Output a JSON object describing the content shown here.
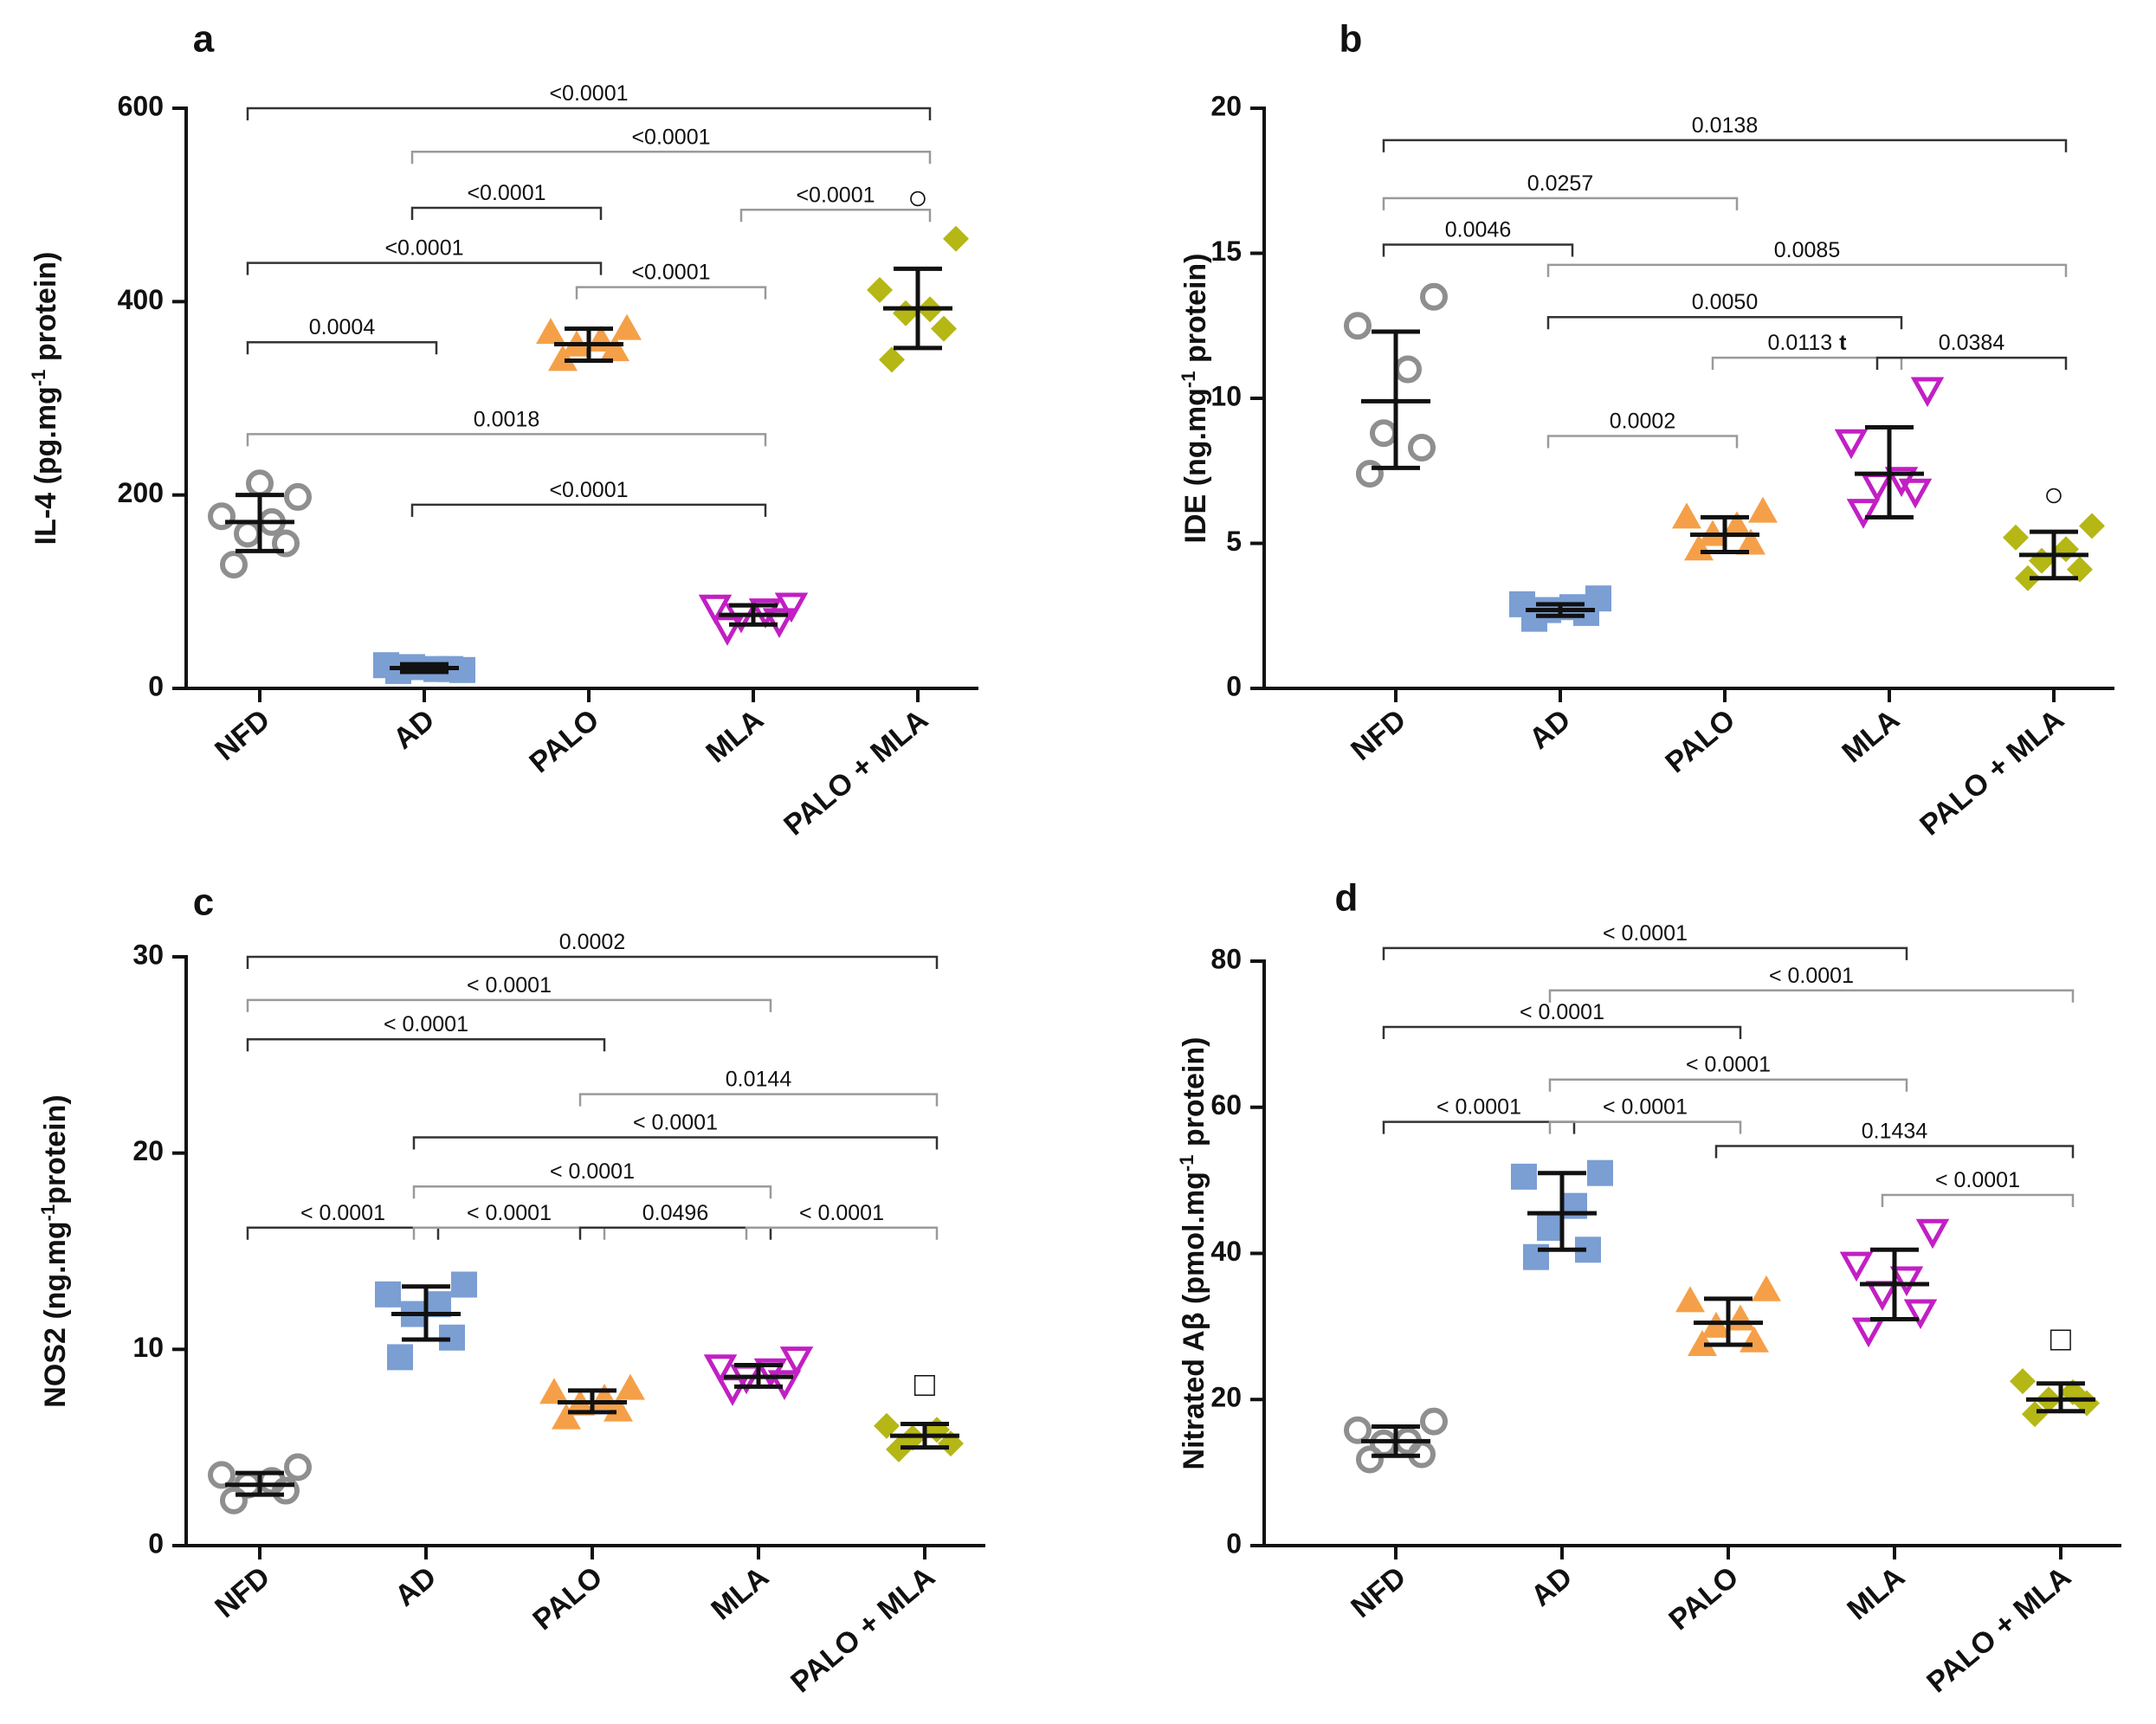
{
  "groups": [
    "NFD",
    "AD",
    "PALO",
    "MLA",
    "PALO + MLA"
  ],
  "colors": {
    "NFD": "#8f8f8f",
    "AD": "#7b9ed3",
    "PALO": "#f5a048",
    "MLA": "#c21fc4",
    "PALO + MLA": "#b5b715",
    "errorbar": "#111111",
    "bracket_dark": "#333333",
    "bracket_light": "#9a9a9a"
  },
  "chart_data": [
    {
      "id": "a",
      "type": "scatter",
      "letter": "a",
      "ylabel": "IL-4 (pg.mg-1 protein)",
      "ylabel_parts": [
        "IL-4 (pg.mg",
        "-1",
        " protein)"
      ],
      "ylim": [
        0,
        600
      ],
      "yticks": [
        0,
        200,
        400,
        600
      ],
      "yticklabels": [
        "0",
        "200",
        "400",
        "600"
      ],
      "categories": [
        "NFD",
        "AD",
        "PALO",
        "MLA",
        "PALO + MLA"
      ],
      "markers": [
        "circle-open",
        "square",
        "triangle-up",
        "triangle-down-open",
        "diamond"
      ],
      "series": [
        {
          "name": "NFD",
          "points": [
            128,
            150,
            160,
            172,
            178,
            198,
            212
          ],
          "mean": 172,
          "error": [
            142,
            200
          ]
        },
        {
          "name": "AD",
          "points": [
            18,
            20,
            22,
            20,
            24,
            19
          ],
          "mean": 21,
          "error": [
            17,
            25
          ]
        },
        {
          "name": "PALO",
          "points": [
            340,
            350,
            355,
            360,
            368,
            372
          ],
          "mean": 356,
          "error": [
            339,
            372
          ]
        },
        {
          "name": "MLA",
          "points": [
            62,
            70,
            75,
            80,
            84,
            86
          ],
          "mean": 76,
          "error": [
            66,
            86
          ]
        },
        {
          "name": "PALO + MLA",
          "points": [
            340,
            372,
            388,
            392,
            412,
            465
          ],
          "mean": 393,
          "error": [
            352,
            434
          ]
        }
      ],
      "significance": [
        {
          "from": 0,
          "to": 4,
          "label": "<0.0001",
          "level": 600
        },
        {
          "from": 1,
          "to": 4,
          "label": "<0.0001",
          "level": 555
        },
        {
          "from": 1,
          "to": 2,
          "label": "<0.0001",
          "level": 497
        },
        {
          "from": 3,
          "to": 4,
          "label": "<0.0001",
          "level": 495
        },
        {
          "from": 0,
          "to": 2,
          "label": "<0.0001",
          "level": 440
        },
        {
          "from": 2,
          "to": 3,
          "label": "<0.0001",
          "level": 415
        },
        {
          "from": 0,
          "to": 1,
          "label": "0.0004",
          "level": 358
        },
        {
          "from": 0,
          "to": 3,
          "label": "0.0018",
          "level": 263
        },
        {
          "from": 1,
          "to": 3,
          "label": "<0.0001",
          "level": 190
        }
      ],
      "annotation": {
        "symbol": "○",
        "group": 4,
        "value": 505
      }
    },
    {
      "id": "b",
      "type": "scatter",
      "letter": "b",
      "ylabel": "IDE (ng.mg-1 protein)",
      "ylabel_parts": [
        "IDE (ng.mg",
        "-1",
        " protein)"
      ],
      "ylim": [
        0,
        20
      ],
      "yticks": [
        0,
        5,
        10,
        15,
        20
      ],
      "yticklabels": [
        "0",
        "5",
        "10",
        "15",
        "20"
      ],
      "categories": [
        "NFD",
        "AD",
        "PALO",
        "MLA",
        "PALO + MLA"
      ],
      "markers": [
        "circle-open",
        "square",
        "triangle-up",
        "triangle-down-open",
        "diamond"
      ],
      "series": [
        {
          "name": "NFD",
          "points": [
            7.4,
            8.3,
            8.8,
            11.0,
            12.5,
            13.5
          ],
          "mean": 9.9,
          "error": [
            7.6,
            12.3
          ]
        },
        {
          "name": "AD",
          "points": [
            2.4,
            2.6,
            2.7,
            2.8,
            2.9,
            3.1
          ],
          "mean": 2.7,
          "error": [
            2.5,
            2.9
          ]
        },
        {
          "name": "PALO",
          "points": [
            4.8,
            5.0,
            5.3,
            5.6,
            5.9,
            6.1
          ],
          "mean": 5.3,
          "error": [
            4.7,
            5.9
          ]
        },
        {
          "name": "MLA",
          "points": [
            6.1,
            6.8,
            7.0,
            7.2,
            8.5,
            10.3
          ],
          "mean": 7.4,
          "error": [
            5.9,
            9.0
          ]
        },
        {
          "name": "PALO + MLA",
          "points": [
            3.8,
            4.1,
            4.4,
            4.8,
            5.2,
            5.6
          ],
          "mean": 4.6,
          "error": [
            3.8,
            5.4
          ]
        }
      ],
      "significance": [
        {
          "from": 0,
          "to": 4,
          "label": "0.0138",
          "level": 18.9
        },
        {
          "from": 0,
          "to": 2,
          "label": "0.0257",
          "level": 16.9
        },
        {
          "from": 0,
          "to": 1,
          "label": "0.0046",
          "level": 15.3
        },
        {
          "from": 1,
          "to": 4,
          "label": "0.0085",
          "level": 14.6
        },
        {
          "from": 1,
          "to": 3,
          "label": "0.0050",
          "level": 12.8
        },
        {
          "from": 2,
          "to": 3,
          "label": "0.0113",
          "label_suffix": "t",
          "level": 11.4
        },
        {
          "from": 3,
          "to": 4,
          "label": "0.0384",
          "level": 11.4
        },
        {
          "from": 1,
          "to": 2,
          "label": "0.0002",
          "level": 8.7
        }
      ],
      "annotation": {
        "symbol": "○",
        "group": 4,
        "value": 6.6
      }
    },
    {
      "id": "c",
      "type": "scatter",
      "letter": "c",
      "ylabel": "NOS2 (ng.mg-1protein)",
      "ylabel_parts": [
        "NOS2 (ng.mg",
        "-1",
        "protein)"
      ],
      "ylim": [
        0,
        30
      ],
      "yticks": [
        0,
        10,
        20,
        30
      ],
      "yticklabels": [
        "0",
        "10",
        "20",
        "30"
      ],
      "categories": [
        "NFD",
        "AD",
        "PALO",
        "MLA",
        "PALO + MLA"
      ],
      "markers": [
        "circle-open",
        "square",
        "triangle-up",
        "triangle-down-open",
        "diamond"
      ],
      "series": [
        {
          "name": "NFD",
          "points": [
            2.3,
            2.8,
            3.1,
            3.3,
            3.6,
            4.0
          ],
          "mean": 3.1,
          "error": [
            2.6,
            3.7
          ]
        },
        {
          "name": "AD",
          "points": [
            9.6,
            10.6,
            11.8,
            12.3,
            12.8,
            13.3
          ],
          "mean": 11.8,
          "error": [
            10.5,
            13.2
          ]
        },
        {
          "name": "PALO",
          "points": [
            6.5,
            6.9,
            7.2,
            7.5,
            7.8,
            8.0
          ],
          "mean": 7.3,
          "error": [
            6.8,
            7.9
          ]
        },
        {
          "name": "MLA",
          "points": [
            8.0,
            8.3,
            8.6,
            8.9,
            9.1,
            9.5
          ],
          "mean": 8.6,
          "error": [
            8.1,
            9.2
          ]
        },
        {
          "name": "PALO + MLA",
          "points": [
            4.9,
            5.2,
            5.5,
            5.9,
            6.1
          ],
          "mean": 5.6,
          "error": [
            5.0,
            6.2
          ]
        }
      ],
      "significance": [
        {
          "from": 0,
          "to": 4,
          "label": "0.0002",
          "level": 30.0
        },
        {
          "from": 0,
          "to": 3,
          "label": "< 0.0001",
          "level": 27.8
        },
        {
          "from": 0,
          "to": 2,
          "label": "< 0.0001",
          "level": 25.8
        },
        {
          "from": 2,
          "to": 4,
          "label": "0.0144",
          "level": 23.0
        },
        {
          "from": 1,
          "to": 4,
          "label": "< 0.0001",
          "level": 20.8
        },
        {
          "from": 1,
          "to": 3,
          "label": "< 0.0001",
          "level": 18.3
        },
        {
          "from": 0,
          "to": 1,
          "label": "< 0.0001",
          "level": 16.2
        },
        {
          "from": 1,
          "to": 2,
          "label": "< 0.0001",
          "level": 16.2
        },
        {
          "from": 2,
          "to": 3,
          "label": "0.0496",
          "level": 16.2
        },
        {
          "from": 3,
          "to": 4,
          "label": "< 0.0001",
          "level": 16.2
        }
      ],
      "annotation": {
        "symbol": "□",
        "group": 4,
        "value": 8.1
      }
    },
    {
      "id": "d",
      "type": "scatter",
      "letter": "d",
      "ylabel": "Nitrated Aβ (pmol.mg-1 protein)",
      "ylabel_parts": [
        "Nitrated Aβ (pmol.mg",
        "-1",
        " protein)"
      ],
      "ylim": [
        0,
        80
      ],
      "yticks": [
        0,
        20,
        40,
        60,
        80
      ],
      "yticklabels": [
        "0",
        "20",
        "40",
        "60",
        "80"
      ],
      "categories": [
        "NFD",
        "AD",
        "PALO",
        "MLA",
        "PALO + MLA"
      ],
      "markers": [
        "circle-open",
        "square",
        "triangle-up",
        "triangle-down-open",
        "diamond"
      ],
      "series": [
        {
          "name": "NFD",
          "points": [
            11.8,
            12.5,
            14.0,
            14.3,
            15.8,
            17.0
          ],
          "mean": 14.3,
          "error": [
            12.3,
            16.3
          ]
        },
        {
          "name": "AD",
          "points": [
            39.5,
            40.5,
            43.5,
            46.5,
            50.5,
            51.0
          ],
          "mean": 45.5,
          "error": [
            40.5,
            51.0
          ]
        },
        {
          "name": "PALO",
          "points": [
            27.5,
            28.0,
            30.0,
            31.0,
            33.5,
            35.0
          ],
          "mean": 30.5,
          "error": [
            27.5,
            33.8
          ]
        },
        {
          "name": "MLA",
          "points": [
            29.5,
            32.0,
            34.5,
            36.5,
            38.5,
            43.0
          ],
          "mean": 35.8,
          "error": [
            31.0,
            40.5
          ]
        },
        {
          "name": "PALO + MLA",
          "points": [
            18.0,
            19.5,
            20.0,
            21.0,
            22.5
          ],
          "mean": 20.0,
          "error": [
            18.4,
            22.2
          ]
        }
      ],
      "significance": [
        {
          "from": 0,
          "to": 3,
          "label": "< 0.0001",
          "level": 81.8
        },
        {
          "from": 1,
          "to": 4,
          "label": "< 0.0001",
          "level": 76.0
        },
        {
          "from": 0,
          "to": 2,
          "label": "< 0.0001",
          "level": 71.0
        },
        {
          "from": 1,
          "to": 3,
          "label": "< 0.0001",
          "level": 63.8
        },
        {
          "from": 0,
          "to": 1,
          "label": "< 0.0001",
          "level": 58.0
        },
        {
          "from": 1,
          "to": 2,
          "label": "< 0.0001",
          "level": 58.0
        },
        {
          "from": 2,
          "to": 4,
          "label": "0.1434",
          "level": 54.7
        },
        {
          "from": 3,
          "to": 4,
          "label": "< 0.0001",
          "level": 48.0
        }
      ],
      "annotation": {
        "symbol": "□",
        "group": 4,
        "value": 28.0
      }
    }
  ]
}
